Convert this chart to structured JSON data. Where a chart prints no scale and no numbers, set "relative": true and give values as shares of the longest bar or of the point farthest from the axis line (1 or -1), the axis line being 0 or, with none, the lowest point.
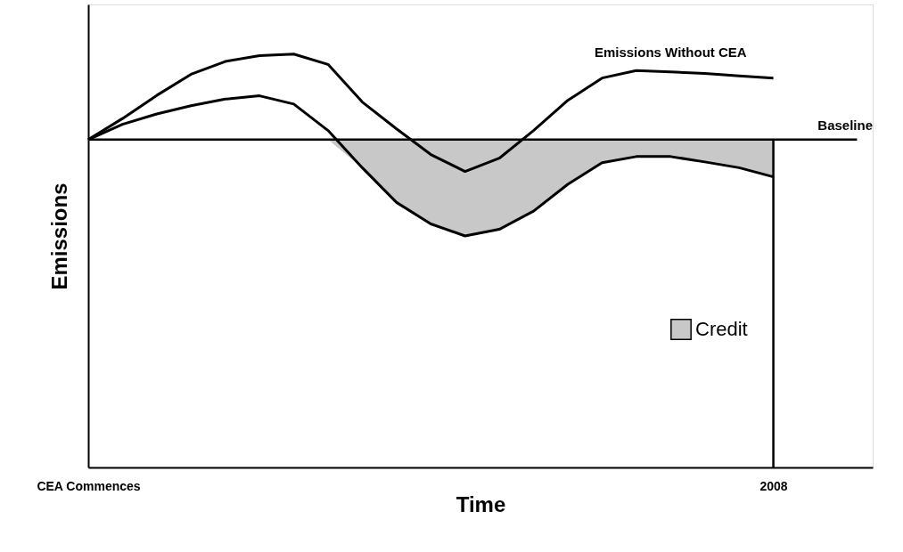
{
  "chart_data": {
    "type": "line",
    "relative": true,
    "xlabel": "Time",
    "ylabel": "Emissions",
    "categories": [
      "CEA Commences",
      null,
      null,
      null,
      null,
      null,
      null,
      null,
      null,
      null,
      null,
      null,
      null,
      null,
      null,
      null,
      null,
      null,
      null,
      null,
      "2008"
    ],
    "series": [
      {
        "name": "Emissions Without CEA",
        "color": "#000000",
        "values": [
          0.793,
          0.844,
          0.9,
          0.951,
          0.982,
          0.996,
          1,
          0.975,
          0.884,
          0.819,
          0.757,
          0.716,
          0.748,
          0.815,
          0.888,
          0.942,
          0.96,
          0.957,
          0.953,
          0.947,
          0.942
        ]
      },
      {
        "color": "#000000",
        "values": [
          0.793,
          0.83,
          0.855,
          0.875,
          0.891,
          0.899,
          0.879,
          0.815,
          0.725,
          0.641,
          0.589,
          0.56,
          0.576,
          0.62,
          0.685,
          0.737,
          0.752,
          0.752,
          0.739,
          0.725,
          0.703
        ]
      },
      {
        "name": "Credit",
        "type": "area",
        "color": "#c8c8c8",
        "values": [
          null,
          null,
          null,
          null,
          null,
          null,
          null,
          null,
          null,
          null,
          null,
          null,
          null,
          null,
          null,
          null,
          null,
          null,
          null,
          null,
          null
        ],
        "lower": [
          null,
          null,
          null,
          null,
          null,
          null,
          null,
          0.793,
          0.725,
          0.641,
          0.589,
          0.56,
          0.576,
          0.62,
          0.685,
          0.737,
          0.752,
          0.752,
          0.739,
          0.725,
          0.703
        ],
        "upper": [
          null,
          null,
          null,
          null,
          null,
          null,
          null,
          0.793,
          0.793,
          0.793,
          0.793,
          0.793,
          0.793,
          0.793,
          0.793,
          0.793,
          0.793,
          0.793,
          0.793,
          0.793,
          0.793
        ]
      }
    ],
    "ref_lines": [
      {
        "axis": "y",
        "value": 0.793,
        "label": "Baseline",
        "color": "#000000"
      },
      {
        "axis": "x",
        "value": "2008",
        "color": "#000000"
      }
    ],
    "legend": "bottom right",
    "grid": false
  }
}
